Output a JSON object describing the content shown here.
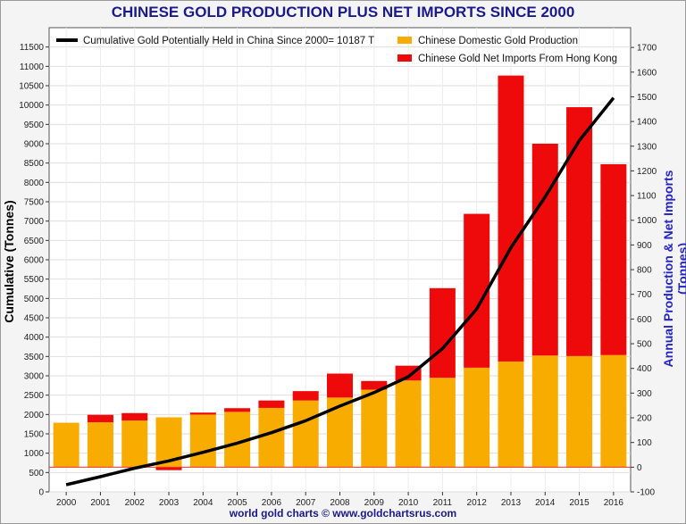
{
  "chart_data": {
    "type": "bar",
    "title": "CHINESE GOLD PRODUCTION PLUS NET IMPORTS SINCE 2000",
    "ylabel_left": "Cumulative (Tonnes)",
    "ylabel_right": "Annual Production & Net Imports (Tonnes)",
    "footer": "world gold charts © www.goldchartsrus.com",
    "categories": [
      "2000",
      "2001",
      "2002",
      "2003",
      "2004",
      "2005",
      "2006",
      "2007",
      "2008",
      "2009",
      "2010",
      "2011",
      "2012",
      "2013",
      "2014",
      "2015",
      "2016"
    ],
    "ylim_left": [
      0,
      12000
    ],
    "yticks_left": [
      "0",
      "500",
      "1000",
      "1500",
      "2000",
      "2500",
      "3000",
      "3500",
      "4000",
      "4500",
      "5000",
      "5500",
      "6000",
      "6500",
      "7000",
      "7500",
      "8000",
      "8500",
      "9000",
      "9500",
      "10000",
      "10500",
      "11000",
      "11500"
    ],
    "ylim_right": [
      -100,
      1780
    ],
    "yticks_right": [
      "-100",
      "0",
      "100",
      "200",
      "300",
      "400",
      "500",
      "600",
      "700",
      "800",
      "900",
      "1000",
      "1100",
      "1200",
      "1300",
      "1400",
      "1500",
      "1600",
      "1700"
    ],
    "series": [
      {
        "name": "Chinese Domestic Gold Production",
        "axis": "right",
        "color": "#f9ac00",
        "values": [
          180,
          182,
          189,
          202,
          213,
          224,
          240,
          270,
          282,
          314,
          351,
          362,
          403,
          428,
          452,
          450,
          454
        ]
      },
      {
        "name": "Chinese Gold Net Imports From Hong Kong",
        "axis": "right",
        "color": "#ee0a0a",
        "values": [
          0,
          30,
          30,
          -12,
          8,
          15,
          30,
          38,
          97,
          35,
          60,
          363,
          623,
          1158,
          858,
          1008,
          773
        ]
      },
      {
        "name": "Cumulative Gold Potentially Held in China Since 2000",
        "axis": "left",
        "color": "#000000",
        "values": [
          180,
          392,
          611,
          801,
          1022,
          1261,
          1531,
          1839,
          2218,
          2567,
          2978,
          3703,
          4729,
          6315,
          7625,
          9083,
          10187
        ]
      }
    ],
    "legend": {
      "cumulative_label": "Cumulative Gold Potentially Held in China Since 2000",
      "cumulative_value": "= 10187 T",
      "production_label": "Chinese Domestic Gold Production",
      "imports_label": "Chinese Gold Net Imports From Hong Kong"
    }
  }
}
